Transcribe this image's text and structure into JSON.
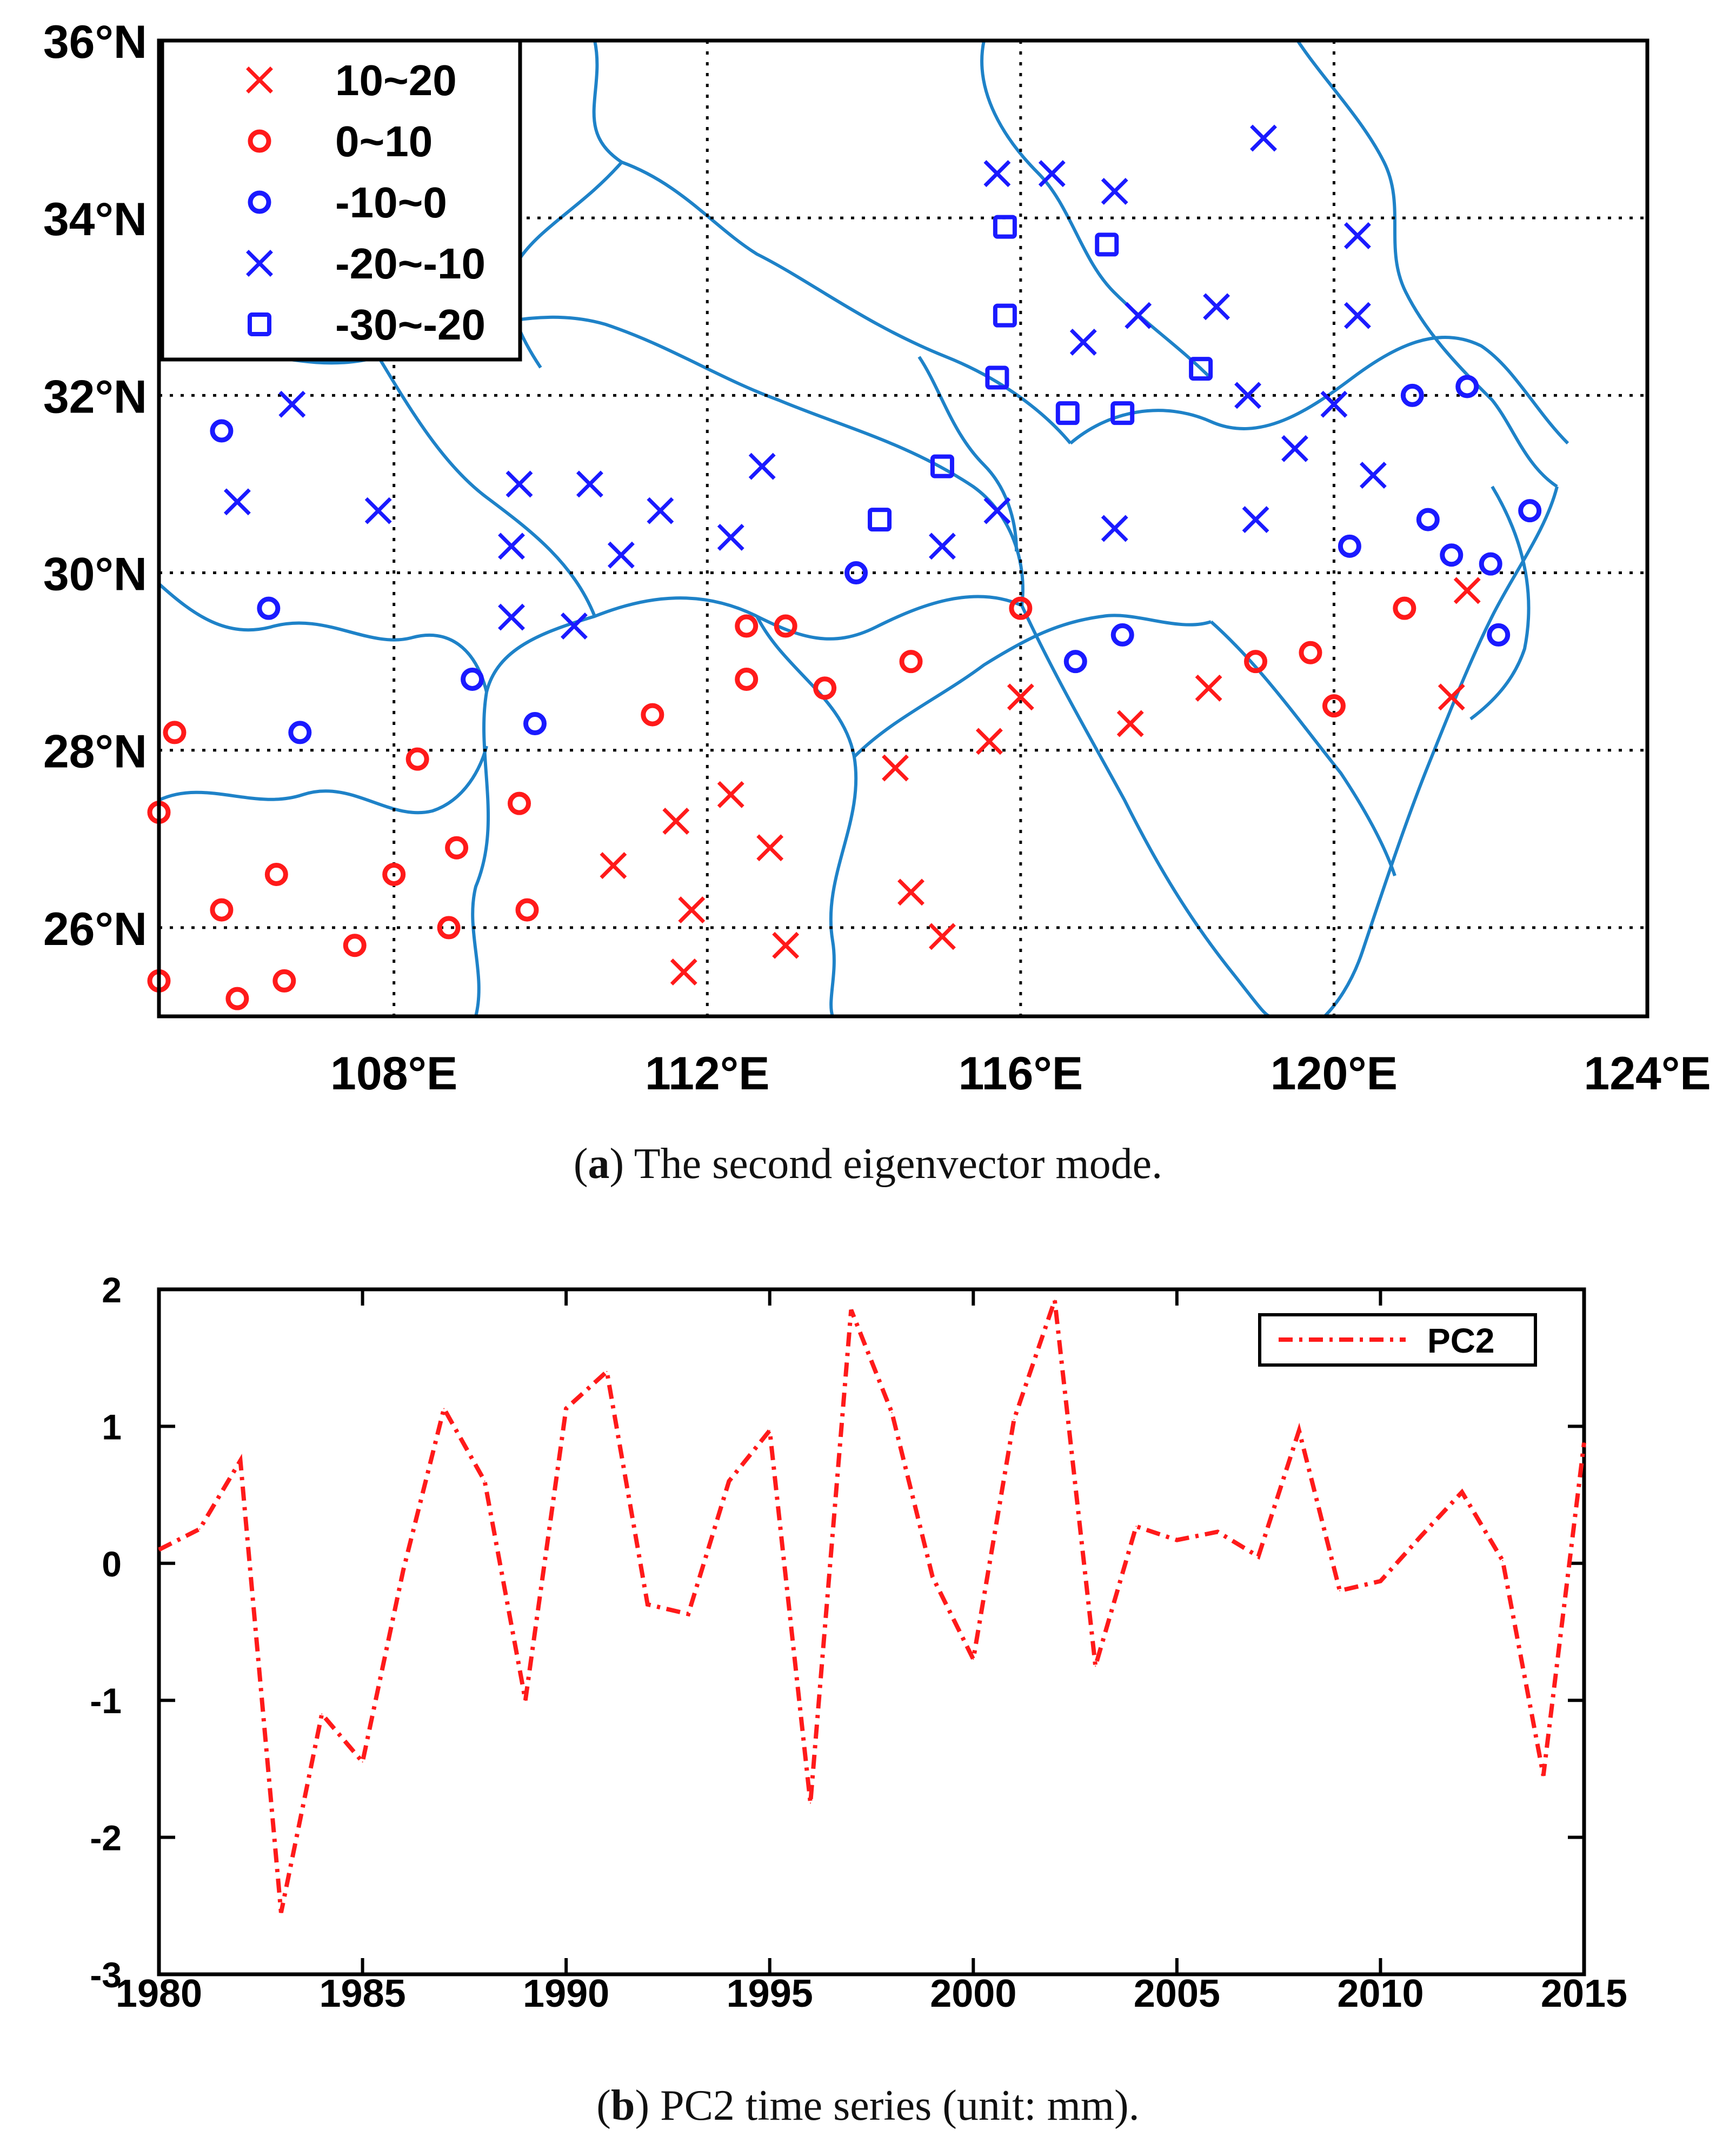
{
  "panel_a": {
    "caption_label": "a",
    "caption_text": "The second eigenvector mode.",
    "colors": {
      "red": "#ff1a1a",
      "blue": "#1a1aff",
      "coast": "#1e82c8",
      "frame": "#000000"
    }
  },
  "panel_b": {
    "caption_label": "b",
    "caption_text": "PC2 time series (unit: mm).",
    "line_color": "#ff1a1a"
  },
  "chart_data": [
    {
      "type": "scatter",
      "title": "The second eigenvector mode.",
      "xlim": [
        105,
        124
      ],
      "ylim": [
        25,
        36
      ],
      "xticks": [
        108,
        112,
        116,
        120,
        124
      ],
      "yticks": [
        26,
        28,
        30,
        32,
        34,
        36
      ],
      "xtick_labels": [
        "108°E",
        "112°E",
        "116°E",
        "120°E",
        "124°E"
      ],
      "ytick_labels": [
        "26°N",
        "28°N",
        "30°N",
        "32°N",
        "34°N",
        "36°N"
      ],
      "grid": true,
      "legend_position": "top-left",
      "series": [
        {
          "name": "10~20",
          "marker": "x",
          "color": "red",
          "points": [
            [
              112.3,
              27.5
            ],
            [
              112.8,
              26.9
            ],
            [
              110.8,
              26.7
            ],
            [
              111.6,
              27.2
            ],
            [
              111.8,
              26.2
            ],
            [
              111.7,
              25.5
            ],
            [
              113.0,
              25.8
            ],
            [
              114.4,
              27.8
            ],
            [
              114.6,
              26.4
            ],
            [
              115.0,
              25.9
            ],
            [
              115.6,
              28.1
            ],
            [
              116.0,
              28.6
            ],
            [
              117.4,
              28.3
            ],
            [
              118.4,
              28.7
            ],
            [
              121.5,
              28.6
            ],
            [
              121.7,
              29.8
            ]
          ]
        },
        {
          "name": "0~10",
          "marker": "o",
          "color": "red",
          "points": [
            [
              105.2,
              28.2
            ],
            [
              105.0,
              27.3
            ],
            [
              105.8,
              26.2
            ],
            [
              106.5,
              26.6
            ],
            [
              105.0,
              25.4
            ],
            [
              106.0,
              25.2
            ],
            [
              106.6,
              25.4
            ],
            [
              107.5,
              25.8
            ],
            [
              108.0,
              26.6
            ],
            [
              108.3,
              27.9
            ],
            [
              108.7,
              26.0
            ],
            [
              108.8,
              26.9
            ],
            [
              109.6,
              27.4
            ],
            [
              109.7,
              26.2
            ],
            [
              111.3,
              28.4
            ],
            [
              112.5,
              28.8
            ],
            [
              112.5,
              29.4
            ],
            [
              113.0,
              29.4
            ],
            [
              113.5,
              28.7
            ],
            [
              114.6,
              29.0
            ],
            [
              116.0,
              29.6
            ],
            [
              119.0,
              29.0
            ],
            [
              119.7,
              29.1
            ],
            [
              120.0,
              28.5
            ],
            [
              120.9,
              29.6
            ]
          ]
        },
        {
          "name": "-10~0",
          "marker": "o",
          "color": "blue",
          "points": [
            [
              105.8,
              31.6
            ],
            [
              106.4,
              29.6
            ],
            [
              106.8,
              28.2
            ],
            [
              109.0,
              28.8
            ],
            [
              109.8,
              28.3
            ],
            [
              113.9,
              30.0
            ],
            [
              116.7,
              29.0
            ],
            [
              117.3,
              29.3
            ],
            [
              120.2,
              30.3
            ],
            [
              121.0,
              32.0
            ],
            [
              121.2,
              30.6
            ],
            [
              121.5,
              30.2
            ],
            [
              121.7,
              32.1
            ],
            [
              122.1,
              29.3
            ],
            [
              122.0,
              30.1
            ],
            [
              122.5,
              30.7
            ]
          ]
        },
        {
          "name": "-20~-10",
          "marker": "x",
          "color": "blue",
          "points": [
            [
              106.0,
              30.8
            ],
            [
              106.7,
              31.9
            ],
            [
              107.8,
              30.7
            ],
            [
              109.5,
              30.3
            ],
            [
              109.6,
              31.0
            ],
            [
              109.5,
              29.5
            ],
            [
              110.3,
              29.4
            ],
            [
              110.5,
              31.0
            ],
            [
              110.9,
              30.2
            ],
            [
              111.4,
              30.7
            ],
            [
              112.3,
              30.4
            ],
            [
              112.7,
              31.2
            ],
            [
              115.0,
              30.3
            ],
            [
              115.7,
              30.7
            ],
            [
              115.7,
              34.5
            ],
            [
              116.4,
              34.5
            ],
            [
              117.2,
              34.3
            ],
            [
              116.8,
              32.6
            ],
            [
              117.5,
              32.9
            ],
            [
              117.2,
              30.5
            ],
            [
              118.5,
              33.0
            ],
            [
              118.9,
              32.0
            ],
            [
              119.0,
              30.6
            ],
            [
              119.5,
              31.4
            ],
            [
              119.1,
              34.9
            ],
            [
              120.0,
              31.9
            ],
            [
              120.3,
              32.9
            ],
            [
              120.3,
              33.8
            ],
            [
              120.5,
              31.1
            ]
          ]
        },
        {
          "name": "-30~-20",
          "marker": "square",
          "color": "blue",
          "points": [
            [
              114.2,
              30.6
            ],
            [
              115.0,
              31.2
            ],
            [
              115.7,
              32.2
            ],
            [
              115.8,
              32.9
            ],
            [
              115.8,
              33.9
            ],
            [
              116.6,
              31.8
            ],
            [
              117.1,
              33.7
            ],
            [
              117.3,
              31.8
            ],
            [
              118.3,
              32.3
            ]
          ]
        }
      ]
    },
    {
      "type": "line",
      "title": "PC2 time series (unit: mm).",
      "xlabel": "",
      "ylabel": "",
      "xlim": [
        1980,
        2015
      ],
      "ylim": [
        -3,
        2
      ],
      "xticks": [
        1980,
        1985,
        1990,
        1995,
        2000,
        2005,
        2010,
        2015
      ],
      "yticks": [
        -3,
        -2,
        -1,
        0,
        1,
        2
      ],
      "legend_position": "top-right",
      "series": [
        {
          "name": "PC2",
          "style": "dash-dot",
          "color": "red",
          "x": [
            1980,
            1981,
            1982,
            1983,
            1984,
            1985,
            1986,
            1987,
            1988,
            1989,
            1990,
            1991,
            1992,
            1993,
            1994,
            1995,
            1996,
            1997,
            1998,
            1999,
            2000,
            2001,
            2002,
            2003,
            2004,
            2005,
            2006,
            2007,
            2008,
            2009,
            2010,
            2011,
            2012,
            2013,
            2014,
            2015
          ],
          "values": [
            0.1,
            0.25,
            0.75,
            -2.55,
            -1.1,
            -1.45,
            -0.05,
            1.13,
            0.6,
            -1.0,
            1.13,
            1.4,
            -0.3,
            -0.37,
            0.6,
            0.97,
            -1.75,
            1.85,
            1.1,
            -0.1,
            -0.7,
            1.05,
            1.92,
            -0.75,
            0.27,
            0.17,
            0.23,
            0.05,
            0.97,
            -0.2,
            -0.13,
            0.2,
            0.52,
            0.02,
            -1.55,
            0.88
          ]
        }
      ]
    }
  ]
}
